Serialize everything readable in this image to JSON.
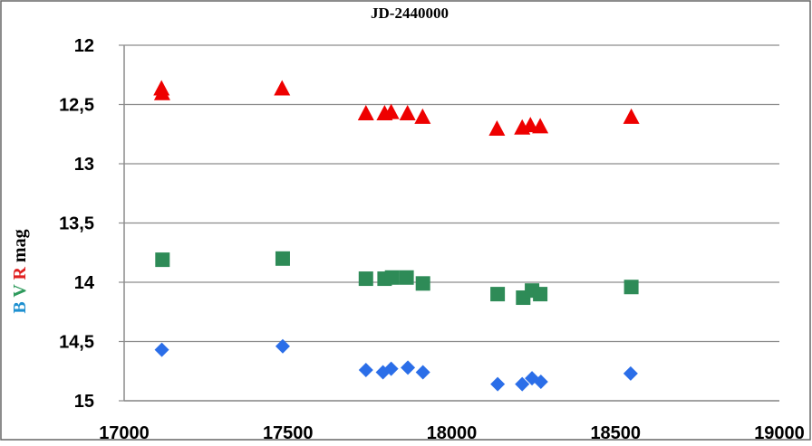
{
  "chart_data": {
    "type": "scatter",
    "title": "JD-2440000",
    "ylabel_parts": [
      {
        "text": "B",
        "color": "#1e90d0"
      },
      {
        "text": " ",
        "color": "#000000"
      },
      {
        "text": "V",
        "color": "#2e9a5c"
      },
      {
        "text": " ",
        "color": "#000000"
      },
      {
        "text": "R",
        "color": "#e02020"
      },
      {
        "text": " mag",
        "color": "#000000"
      }
    ],
    "xlim": [
      17000,
      19000
    ],
    "ylim": [
      12,
      15
    ],
    "y_inverted": true,
    "grid": "horizontal",
    "xticks": [
      "17000",
      "17500",
      "18000",
      "18500",
      "19000"
    ],
    "xtick_values": [
      17000,
      17500,
      18000,
      18500,
      19000
    ],
    "yticks": [
      "12",
      "12,5",
      "13",
      "13,5",
      "14",
      "14,5",
      "15"
    ],
    "ytick_values": [
      12,
      12.5,
      13,
      13.5,
      14,
      14.5,
      15
    ],
    "series": [
      {
        "marker": "triangle",
        "color": "#ee0000",
        "points": [
          [
            17114,
            12.37
          ],
          [
            17116,
            12.41
          ],
          [
            17482,
            12.37
          ],
          [
            17738,
            12.58
          ],
          [
            17795,
            12.58
          ],
          [
            17815,
            12.57
          ],
          [
            17865,
            12.58
          ],
          [
            17911,
            12.61
          ],
          [
            18138,
            12.71
          ],
          [
            18215,
            12.7
          ],
          [
            18240,
            12.68
          ],
          [
            18270,
            12.69
          ],
          [
            18548,
            12.61
          ]
        ]
      },
      {
        "marker": "square",
        "color": "#2e8b57",
        "points": [
          [
            17117,
            13.81
          ],
          [
            17484,
            13.8
          ],
          [
            17738,
            13.97
          ],
          [
            17795,
            13.97
          ],
          [
            17818,
            13.96
          ],
          [
            17862,
            13.96
          ],
          [
            17912,
            14.01
          ],
          [
            18140,
            14.1
          ],
          [
            18218,
            14.13
          ],
          [
            18245,
            14.07
          ],
          [
            18270,
            14.1
          ],
          [
            18548,
            14.04
          ]
        ]
      },
      {
        "marker": "diamond",
        "color": "#2b6ee8",
        "points": [
          [
            17115,
            14.57
          ],
          [
            17484,
            14.54
          ],
          [
            17738,
            14.74
          ],
          [
            17790,
            14.76
          ],
          [
            17815,
            14.73
          ],
          [
            17866,
            14.72
          ],
          [
            17912,
            14.76
          ],
          [
            18140,
            14.86
          ],
          [
            18215,
            14.86
          ],
          [
            18245,
            14.81
          ],
          [
            18272,
            14.84
          ],
          [
            18546,
            14.77
          ]
        ]
      }
    ]
  }
}
